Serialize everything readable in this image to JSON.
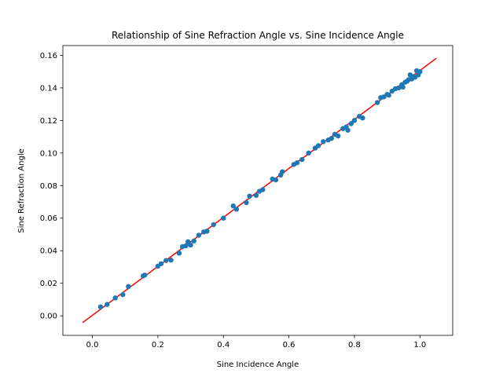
{
  "chart_data": {
    "type": "scatter",
    "title": "Relationship of Sine Refraction Angle vs. Sine Incidence Angle",
    "xlabel": "Sine Incidence Angle",
    "ylabel": "Sine Refraction Angle",
    "xlim": [
      -0.09,
      1.1
    ],
    "ylim": [
      -0.012,
      0.166
    ],
    "xticks": [
      0.0,
      0.2,
      0.4,
      0.6,
      0.8,
      1.0
    ],
    "xtick_labels": [
      "0.0",
      "0.2",
      "0.4",
      "0.6",
      "0.8",
      "1.0"
    ],
    "yticks": [
      0.0,
      0.02,
      0.04,
      0.06,
      0.08,
      0.1,
      0.12,
      0.14,
      0.16
    ],
    "ytick_labels": [
      "0.00",
      "0.02",
      "0.04",
      "0.06",
      "0.08",
      "0.10",
      "0.12",
      "0.14",
      "0.16"
    ],
    "grid": false,
    "points_color": "#1f77b4",
    "fit_line": {
      "color": "#ff0000",
      "x": [
        -0.03,
        1.05
      ],
      "y": [
        -0.0042,
        0.1582
      ]
    },
    "points": [
      [
        0.025,
        0.0055
      ],
      [
        0.045,
        0.007
      ],
      [
        0.07,
        0.011
      ],
      [
        0.093,
        0.013
      ],
      [
        0.11,
        0.018
      ],
      [
        0.155,
        0.0245
      ],
      [
        0.16,
        0.025
      ],
      [
        0.2,
        0.0305
      ],
      [
        0.21,
        0.032
      ],
      [
        0.225,
        0.034
      ],
      [
        0.24,
        0.0342
      ],
      [
        0.265,
        0.0385
      ],
      [
        0.275,
        0.0425
      ],
      [
        0.285,
        0.043
      ],
      [
        0.292,
        0.0455
      ],
      [
        0.3,
        0.0435
      ],
      [
        0.31,
        0.046
      ],
      [
        0.325,
        0.0495
      ],
      [
        0.34,
        0.0515
      ],
      [
        0.35,
        0.052
      ],
      [
        0.37,
        0.056
      ],
      [
        0.4,
        0.06
      ],
      [
        0.43,
        0.0675
      ],
      [
        0.44,
        0.0655
      ],
      [
        0.47,
        0.0695
      ],
      [
        0.48,
        0.0735
      ],
      [
        0.5,
        0.074
      ],
      [
        0.51,
        0.0765
      ],
      [
        0.52,
        0.0775
      ],
      [
        0.55,
        0.084
      ],
      [
        0.56,
        0.0835
      ],
      [
        0.575,
        0.0865
      ],
      [
        0.58,
        0.0885
      ],
      [
        0.615,
        0.093
      ],
      [
        0.625,
        0.094
      ],
      [
        0.64,
        0.096
      ],
      [
        0.66,
        0.1
      ],
      [
        0.68,
        0.103
      ],
      [
        0.69,
        0.1045
      ],
      [
        0.705,
        0.107
      ],
      [
        0.72,
        0.108
      ],
      [
        0.73,
        0.109
      ],
      [
        0.74,
        0.1115
      ],
      [
        0.75,
        0.1105
      ],
      [
        0.765,
        0.115
      ],
      [
        0.775,
        0.116
      ],
      [
        0.78,
        0.114
      ],
      [
        0.79,
        0.118
      ],
      [
        0.8,
        0.12
      ],
      [
        0.815,
        0.1225
      ],
      [
        0.825,
        0.1215
      ],
      [
        0.87,
        0.131
      ],
      [
        0.88,
        0.134
      ],
      [
        0.89,
        0.1345
      ],
      [
        0.9,
        0.136
      ],
      [
        0.905,
        0.1355
      ],
      [
        0.915,
        0.138
      ],
      [
        0.925,
        0.1395
      ],
      [
        0.935,
        0.14
      ],
      [
        0.945,
        0.142
      ],
      [
        0.948,
        0.1405
      ],
      [
        0.955,
        0.1435
      ],
      [
        0.96,
        0.144
      ],
      [
        0.965,
        0.145
      ],
      [
        0.97,
        0.148
      ],
      [
        0.975,
        0.1455
      ],
      [
        0.98,
        0.147
      ],
      [
        0.985,
        0.1465
      ],
      [
        0.99,
        0.1505
      ],
      [
        0.995,
        0.148
      ],
      [
        1.0,
        0.15
      ]
    ]
  }
}
